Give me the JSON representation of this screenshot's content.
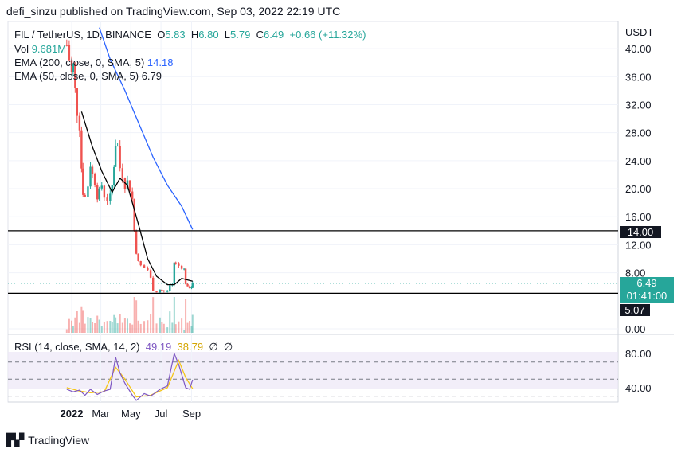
{
  "header": {
    "text": "defi_sinzu published on TradingView.com, Sep 03, 2022 22:19 UTC"
  },
  "legend": {
    "symbol": "FIL / TetherUS, 1D, BINANCE",
    "o_label": "O",
    "o": "5.83",
    "h_label": "H",
    "h": "6.80",
    "l_label": "L",
    "l": "5.79",
    "c_label": "C",
    "c": "6.49",
    "change": "+0.66 (+11.32%)",
    "vol_label": "Vol",
    "vol": "9.681M",
    "ema200_label": "EMA (200, close, 0, SMA, 5)",
    "ema200": "14.18",
    "ema50_label": "EMA (50, close, 0, SMA, 5)",
    "ema50": "6.79"
  },
  "rsi_legend": {
    "label": "RSI (14, close, SMA, 14, 2)",
    "rsi": "49.19",
    "sma": "38.79",
    "x1": "∅",
    "x2": "∅"
  },
  "price_axis": {
    "currency": "USDT",
    "ticks": [
      "40.00",
      "36.00",
      "32.00",
      "28.00",
      "24.00",
      "20.00",
      "16.00",
      "12.00",
      "8.00",
      "0.00"
    ]
  },
  "rsi_axis": {
    "ticks": [
      "80.00",
      "40.00"
    ]
  },
  "time_axis": {
    "ticks": [
      "2022",
      "Mar",
      "May",
      "Jul",
      "Sep"
    ]
  },
  "tags": {
    "level_upper": "14.00",
    "current_price": "6.49",
    "countdown": "01:41:00",
    "level_lower": "5.07"
  },
  "colors": {
    "up": "#26a69a",
    "down": "#ef5350",
    "ema200": "#2962ff",
    "ema50": "#000000",
    "rsi": "#7e57c2",
    "rsi_ma": "#f5c518"
  },
  "footer": {
    "brand": "TradingView"
  },
  "chart_data": {
    "type": "candlestick",
    "title": "FIL / TetherUS, 1D, BINANCE",
    "ylabel": "USDT",
    "ylim": [
      0,
      43
    ],
    "x_ticks": [
      "2022",
      "Mar",
      "May",
      "Jul",
      "Sep"
    ],
    "horizontal_levels": [
      14.0,
      5.07
    ],
    "last": {
      "open": 5.83,
      "high": 6.8,
      "low": 5.79,
      "close": 6.49
    },
    "close_path": [
      {
        "x": "2021-12-22",
        "y": 40.5
      },
      {
        "x": "2021-12-27",
        "y": 38.5
      },
      {
        "x": "2022-01-01",
        "y": 36.5
      },
      {
        "x": "2022-01-04",
        "y": 37.5
      },
      {
        "x": "2022-01-08",
        "y": 34
      },
      {
        "x": "2022-01-12",
        "y": 31
      },
      {
        "x": "2022-01-17",
        "y": 29
      },
      {
        "x": "2022-01-21",
        "y": 23
      },
      {
        "x": "2022-01-24",
        "y": 19.5
      },
      {
        "x": "2022-01-28",
        "y": 18.8
      },
      {
        "x": "2022-02-03",
        "y": 20.5
      },
      {
        "x": "2022-02-08",
        "y": 23.5
      },
      {
        "x": "2022-02-12",
        "y": 22
      },
      {
        "x": "2022-02-17",
        "y": 21
      },
      {
        "x": "2022-02-22",
        "y": 19
      },
      {
        "x": "2022-02-26",
        "y": 19.5
      },
      {
        "x": "2022-03-03",
        "y": 20.5
      },
      {
        "x": "2022-03-08",
        "y": 19
      },
      {
        "x": "2022-03-14",
        "y": 18.5
      },
      {
        "x": "2022-03-20",
        "y": 18.8
      },
      {
        "x": "2022-03-24",
        "y": 20.5
      },
      {
        "x": "2022-03-28",
        "y": 23.5
      },
      {
        "x": "2022-03-31",
        "y": 26.5
      },
      {
        "x": "2022-04-04",
        "y": 26
      },
      {
        "x": "2022-04-09",
        "y": 23
      },
      {
        "x": "2022-04-14",
        "y": 22
      },
      {
        "x": "2022-04-19",
        "y": 20.5
      },
      {
        "x": "2022-04-24",
        "y": 21
      },
      {
        "x": "2022-04-29",
        "y": 20
      },
      {
        "x": "2022-05-04",
        "y": 18.5
      },
      {
        "x": "2022-05-08",
        "y": 14
      },
      {
        "x": "2022-05-12",
        "y": 11
      },
      {
        "x": "2022-05-16",
        "y": 9.5
      },
      {
        "x": "2022-05-21",
        "y": 9
      },
      {
        "x": "2022-05-28",
        "y": 8.7
      },
      {
        "x": "2022-06-04",
        "y": 8.4
      },
      {
        "x": "2022-06-10",
        "y": 7.2
      },
      {
        "x": "2022-06-15",
        "y": 5.5
      },
      {
        "x": "2022-06-22",
        "y": 5.3
      },
      {
        "x": "2022-06-29",
        "y": 5.6
      },
      {
        "x": "2022-07-07",
        "y": 5.3
      },
      {
        "x": "2022-07-14",
        "y": 5.4
      },
      {
        "x": "2022-07-19",
        "y": 6.2
      },
      {
        "x": "2022-07-24",
        "y": 6.3
      },
      {
        "x": "2022-07-28",
        "y": 9.5
      },
      {
        "x": "2022-07-31",
        "y": 9.3
      },
      {
        "x": "2022-08-06",
        "y": 9.0
      },
      {
        "x": "2022-08-12",
        "y": 8.8
      },
      {
        "x": "2022-08-17",
        "y": 8.5
      },
      {
        "x": "2022-08-20",
        "y": 6.5
      },
      {
        "x": "2022-08-24",
        "y": 5.9
      },
      {
        "x": "2022-08-28",
        "y": 5.9
      },
      {
        "x": "2022-09-01",
        "y": 6.0
      },
      {
        "x": "2022-09-03",
        "y": 6.49
      }
    ],
    "ema200": [
      {
        "x": "2022-02-26",
        "y": 43
      },
      {
        "x": "2022-03-20",
        "y": 38.5
      },
      {
        "x": "2022-04-19",
        "y": 34
      },
      {
        "x": "2022-05-16",
        "y": 29.5
      },
      {
        "x": "2022-06-15",
        "y": 24.5
      },
      {
        "x": "2022-07-14",
        "y": 20.5
      },
      {
        "x": "2022-08-12",
        "y": 17.5
      },
      {
        "x": "2022-09-03",
        "y": 14.18
      }
    ],
    "ema50": [
      {
        "x": "2022-01-21",
        "y": 31
      },
      {
        "x": "2022-02-12",
        "y": 26
      },
      {
        "x": "2022-03-03",
        "y": 22.5
      },
      {
        "x": "2022-03-24",
        "y": 19.5
      },
      {
        "x": "2022-04-09",
        "y": 21.5
      },
      {
        "x": "2022-04-24",
        "y": 20.5
      },
      {
        "x": "2022-05-16",
        "y": 15
      },
      {
        "x": "2022-06-04",
        "y": 10
      },
      {
        "x": "2022-06-22",
        "y": 7.5
      },
      {
        "x": "2022-07-14",
        "y": 6.3
      },
      {
        "x": "2022-07-28",
        "y": 6.3
      },
      {
        "x": "2022-08-12",
        "y": 7.2
      },
      {
        "x": "2022-09-03",
        "y": 6.79
      }
    ],
    "rsi": [
      {
        "x": "2021-12-22",
        "y": 38
      },
      {
        "x": "2022-01-04",
        "y": 35
      },
      {
        "x": "2022-01-17",
        "y": 37
      },
      {
        "x": "2022-01-28",
        "y": 31
      },
      {
        "x": "2022-02-08",
        "y": 38
      },
      {
        "x": "2022-02-22",
        "y": 32
      },
      {
        "x": "2022-03-08",
        "y": 36
      },
      {
        "x": "2022-03-20",
        "y": 38
      },
      {
        "x": "2022-03-31",
        "y": 76
      },
      {
        "x": "2022-04-09",
        "y": 57
      },
      {
        "x": "2022-04-19",
        "y": 45
      },
      {
        "x": "2022-05-04",
        "y": 31
      },
      {
        "x": "2022-05-12",
        "y": 25
      },
      {
        "x": "2022-05-28",
        "y": 33
      },
      {
        "x": "2022-06-10",
        "y": 30
      },
      {
        "x": "2022-06-29",
        "y": 38
      },
      {
        "x": "2022-07-14",
        "y": 42
      },
      {
        "x": "2022-07-28",
        "y": 80
      },
      {
        "x": "2022-08-06",
        "y": 67
      },
      {
        "x": "2022-08-20",
        "y": 40
      },
      {
        "x": "2022-08-28",
        "y": 38
      },
      {
        "x": "2022-09-03",
        "y": 49.19
      }
    ],
    "rsi_ma": [
      {
        "x": "2021-12-22",
        "y": 40
      },
      {
        "x": "2022-01-17",
        "y": 36
      },
      {
        "x": "2022-02-08",
        "y": 34
      },
      {
        "x": "2022-03-08",
        "y": 35
      },
      {
        "x": "2022-03-31",
        "y": 64
      },
      {
        "x": "2022-04-19",
        "y": 50
      },
      {
        "x": "2022-05-12",
        "y": 29
      },
      {
        "x": "2022-06-10",
        "y": 31
      },
      {
        "x": "2022-07-14",
        "y": 40
      },
      {
        "x": "2022-08-06",
        "y": 72
      },
      {
        "x": "2022-08-20",
        "y": 52
      },
      {
        "x": "2022-09-03",
        "y": 38.79
      }
    ],
    "rsi_ylim": [
      15,
      88
    ],
    "rsi_bands": [
      70,
      30
    ]
  }
}
